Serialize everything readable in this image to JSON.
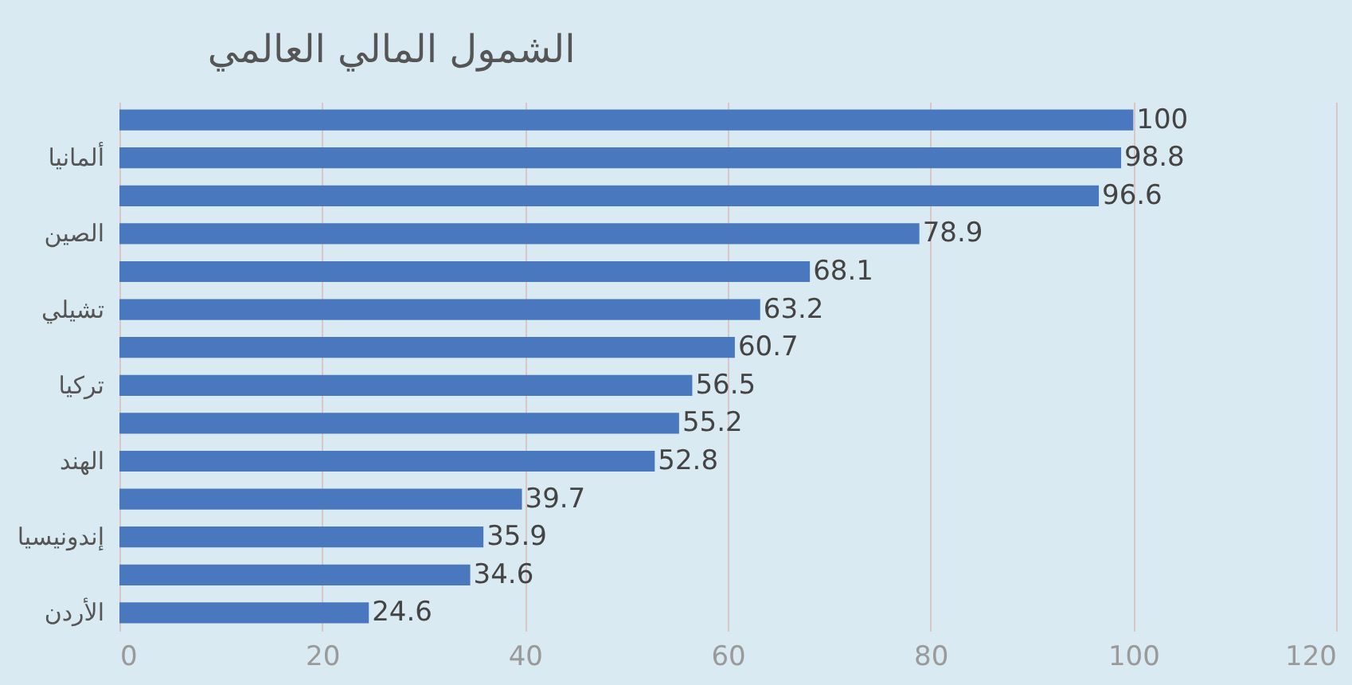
{
  "chart_data": {
    "type": "bar",
    "orientation": "horizontal",
    "title": "الشمول المالي العالمي",
    "categories": [
      null,
      "ألمانيا",
      null,
      "الصين",
      null,
      "تشيلي",
      null,
      "تركيا",
      null,
      "الهند",
      null,
      "إندونيسيا",
      null,
      "الأردن"
    ],
    "values": [
      100,
      98.8,
      96.6,
      78.9,
      68.1,
      63.2,
      60.7,
      56.5,
      55.2,
      52.8,
      39.7,
      35.9,
      34.6,
      24.6
    ],
    "color": "#4a78bf",
    "xlim": [
      0,
      120
    ],
    "xticks": [
      0,
      20,
      40,
      60,
      80,
      100,
      120
    ],
    "grid": "x",
    "data_labels": true
  }
}
